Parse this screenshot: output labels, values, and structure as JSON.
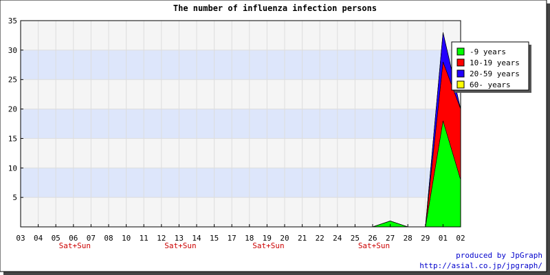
{
  "chart_data": {
    "type": "area",
    "stacked": true,
    "title": "The number of influenza infection persons",
    "ylim": [
      0,
      35
    ],
    "yticks": [
      5,
      10,
      15,
      20,
      25,
      30,
      35
    ],
    "categories": [
      "03",
      "04",
      "05",
      "06",
      "07",
      "08",
      "10",
      "11",
      "12",
      "13",
      "14",
      "15",
      "17",
      "18",
      "19",
      "20",
      "21",
      "22",
      "24",
      "25",
      "26",
      "27",
      "28",
      "29",
      "01",
      "02"
    ],
    "weekend_label": "Sat+Sun",
    "weekend_categories": [
      "06",
      "13",
      "19",
      "26"
    ],
    "series": [
      {
        "name": "-9 years",
        "color": "#00ff00",
        "values": [
          0,
          0,
          0,
          0,
          0,
          0,
          0,
          0,
          0,
          0,
          0,
          0,
          0,
          0,
          0,
          0,
          0,
          0,
          0,
          0,
          0,
          1,
          0,
          0,
          18,
          8
        ]
      },
      {
        "name": "10-19 years",
        "color": "#ff0000",
        "values": [
          0,
          0,
          0,
          0,
          0,
          0,
          0,
          0,
          0,
          0,
          0,
          0,
          0,
          0,
          0,
          0,
          0,
          0,
          0,
          0,
          0,
          0,
          0,
          0,
          10,
          12
        ]
      },
      {
        "name": "20-59 years",
        "color": "#2200ff",
        "values": [
          0,
          0,
          0,
          0,
          0,
          0,
          0,
          0,
          0,
          0,
          0,
          0,
          0,
          0,
          0,
          0,
          0,
          0,
          0,
          0,
          0,
          0,
          0,
          0,
          5,
          0
        ]
      },
      {
        "name": "60- years",
        "color": "#ffff00",
        "values": [
          0,
          0,
          0,
          0,
          0,
          0,
          0,
          0,
          0,
          0,
          0,
          0,
          0,
          0,
          0,
          0,
          0,
          0,
          0,
          0,
          0,
          0,
          0,
          0,
          0,
          0
        ]
      }
    ],
    "grid": true,
    "band_colors": [
      "#f5f5f5",
      "#dde6fb"
    ],
    "legend_position": "top-right"
  },
  "footer": {
    "line1": "produced by JpGraph",
    "line2": "http://asial.co.jp/jpgraph/"
  }
}
